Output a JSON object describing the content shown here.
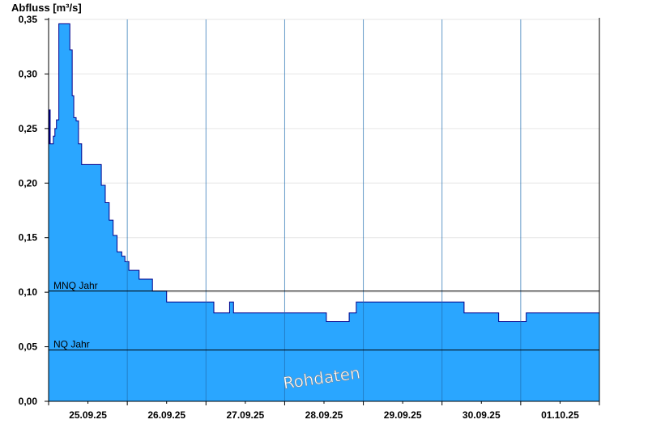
{
  "chart_data": {
    "type": "area",
    "ylabel": "Abfluss [m³/s]",
    "title": "",
    "xlabel": "",
    "ylim": [
      0,
      0.35
    ],
    "xlim": [
      0,
      7
    ],
    "y_ticks": [
      "0,00",
      "0,05",
      "0,10",
      "0,15",
      "0,20",
      "0,25",
      "0,30",
      "0,35"
    ],
    "y_tick_values": [
      0,
      0.05,
      0.1,
      0.15,
      0.2,
      0.25,
      0.3,
      0.35
    ],
    "x_ticks": [
      "25.09.25",
      "26.09.25",
      "27.09.25",
      "28.09.25",
      "29.09.25",
      "30.09.25",
      "01.10.25"
    ],
    "x_tick_positions": [
      0.5,
      1.5,
      2.5,
      3.5,
      4.5,
      5.5,
      6.5
    ],
    "reference_lines": [
      {
        "label": "MNQ Jahr",
        "value": 0.101
      },
      {
        "label": "NQ Jahr",
        "value": 0.047
      }
    ],
    "watermark": "Rohdaten",
    "fill_color": "#2aa6ff",
    "line_color": "#00008b",
    "grid": true,
    "series": [
      {
        "x": [
          0,
          0.01,
          0.02,
          0.04,
          0.06,
          0.08,
          0.1,
          0.13,
          0.27,
          0.3,
          0.32,
          0.35,
          0.38,
          0.42,
          0.5,
          0.67,
          0.72,
          0.77,
          0.82,
          0.87,
          0.93,
          0.97,
          1.02,
          1.15,
          1.32,
          1.45,
          1.5,
          1.7,
          2.08,
          2.1,
          2.13,
          2.22,
          2.3,
          2.35,
          2.52,
          2.68,
          2.75,
          2.83,
          3.05,
          3.42,
          3.53,
          3.77,
          3.82,
          3.91,
          5.28,
          5.52,
          5.67,
          5.72,
          6.07,
          6.15,
          7.0
        ],
        "y": [
          0.236,
          0.267,
          0.236,
          0.236,
          0.243,
          0.25,
          0.258,
          0.346,
          0.322,
          0.28,
          0.26,
          0.257,
          0.236,
          0.217,
          0.217,
          0.198,
          0.182,
          0.166,
          0.152,
          0.137,
          0.133,
          0.128,
          0.12,
          0.112,
          0.101,
          0.101,
          0.091,
          0.091,
          0.091,
          0.081,
          0.081,
          0.081,
          0.091,
          0.081,
          0.081,
          0.081,
          0.081,
          0.081,
          0.081,
          0.081,
          0.073,
          0.073,
          0.081,
          0.091,
          0.081,
          0.081,
          0.081,
          0.073,
          0.081,
          0.081,
          0.081
        ]
      }
    ]
  }
}
